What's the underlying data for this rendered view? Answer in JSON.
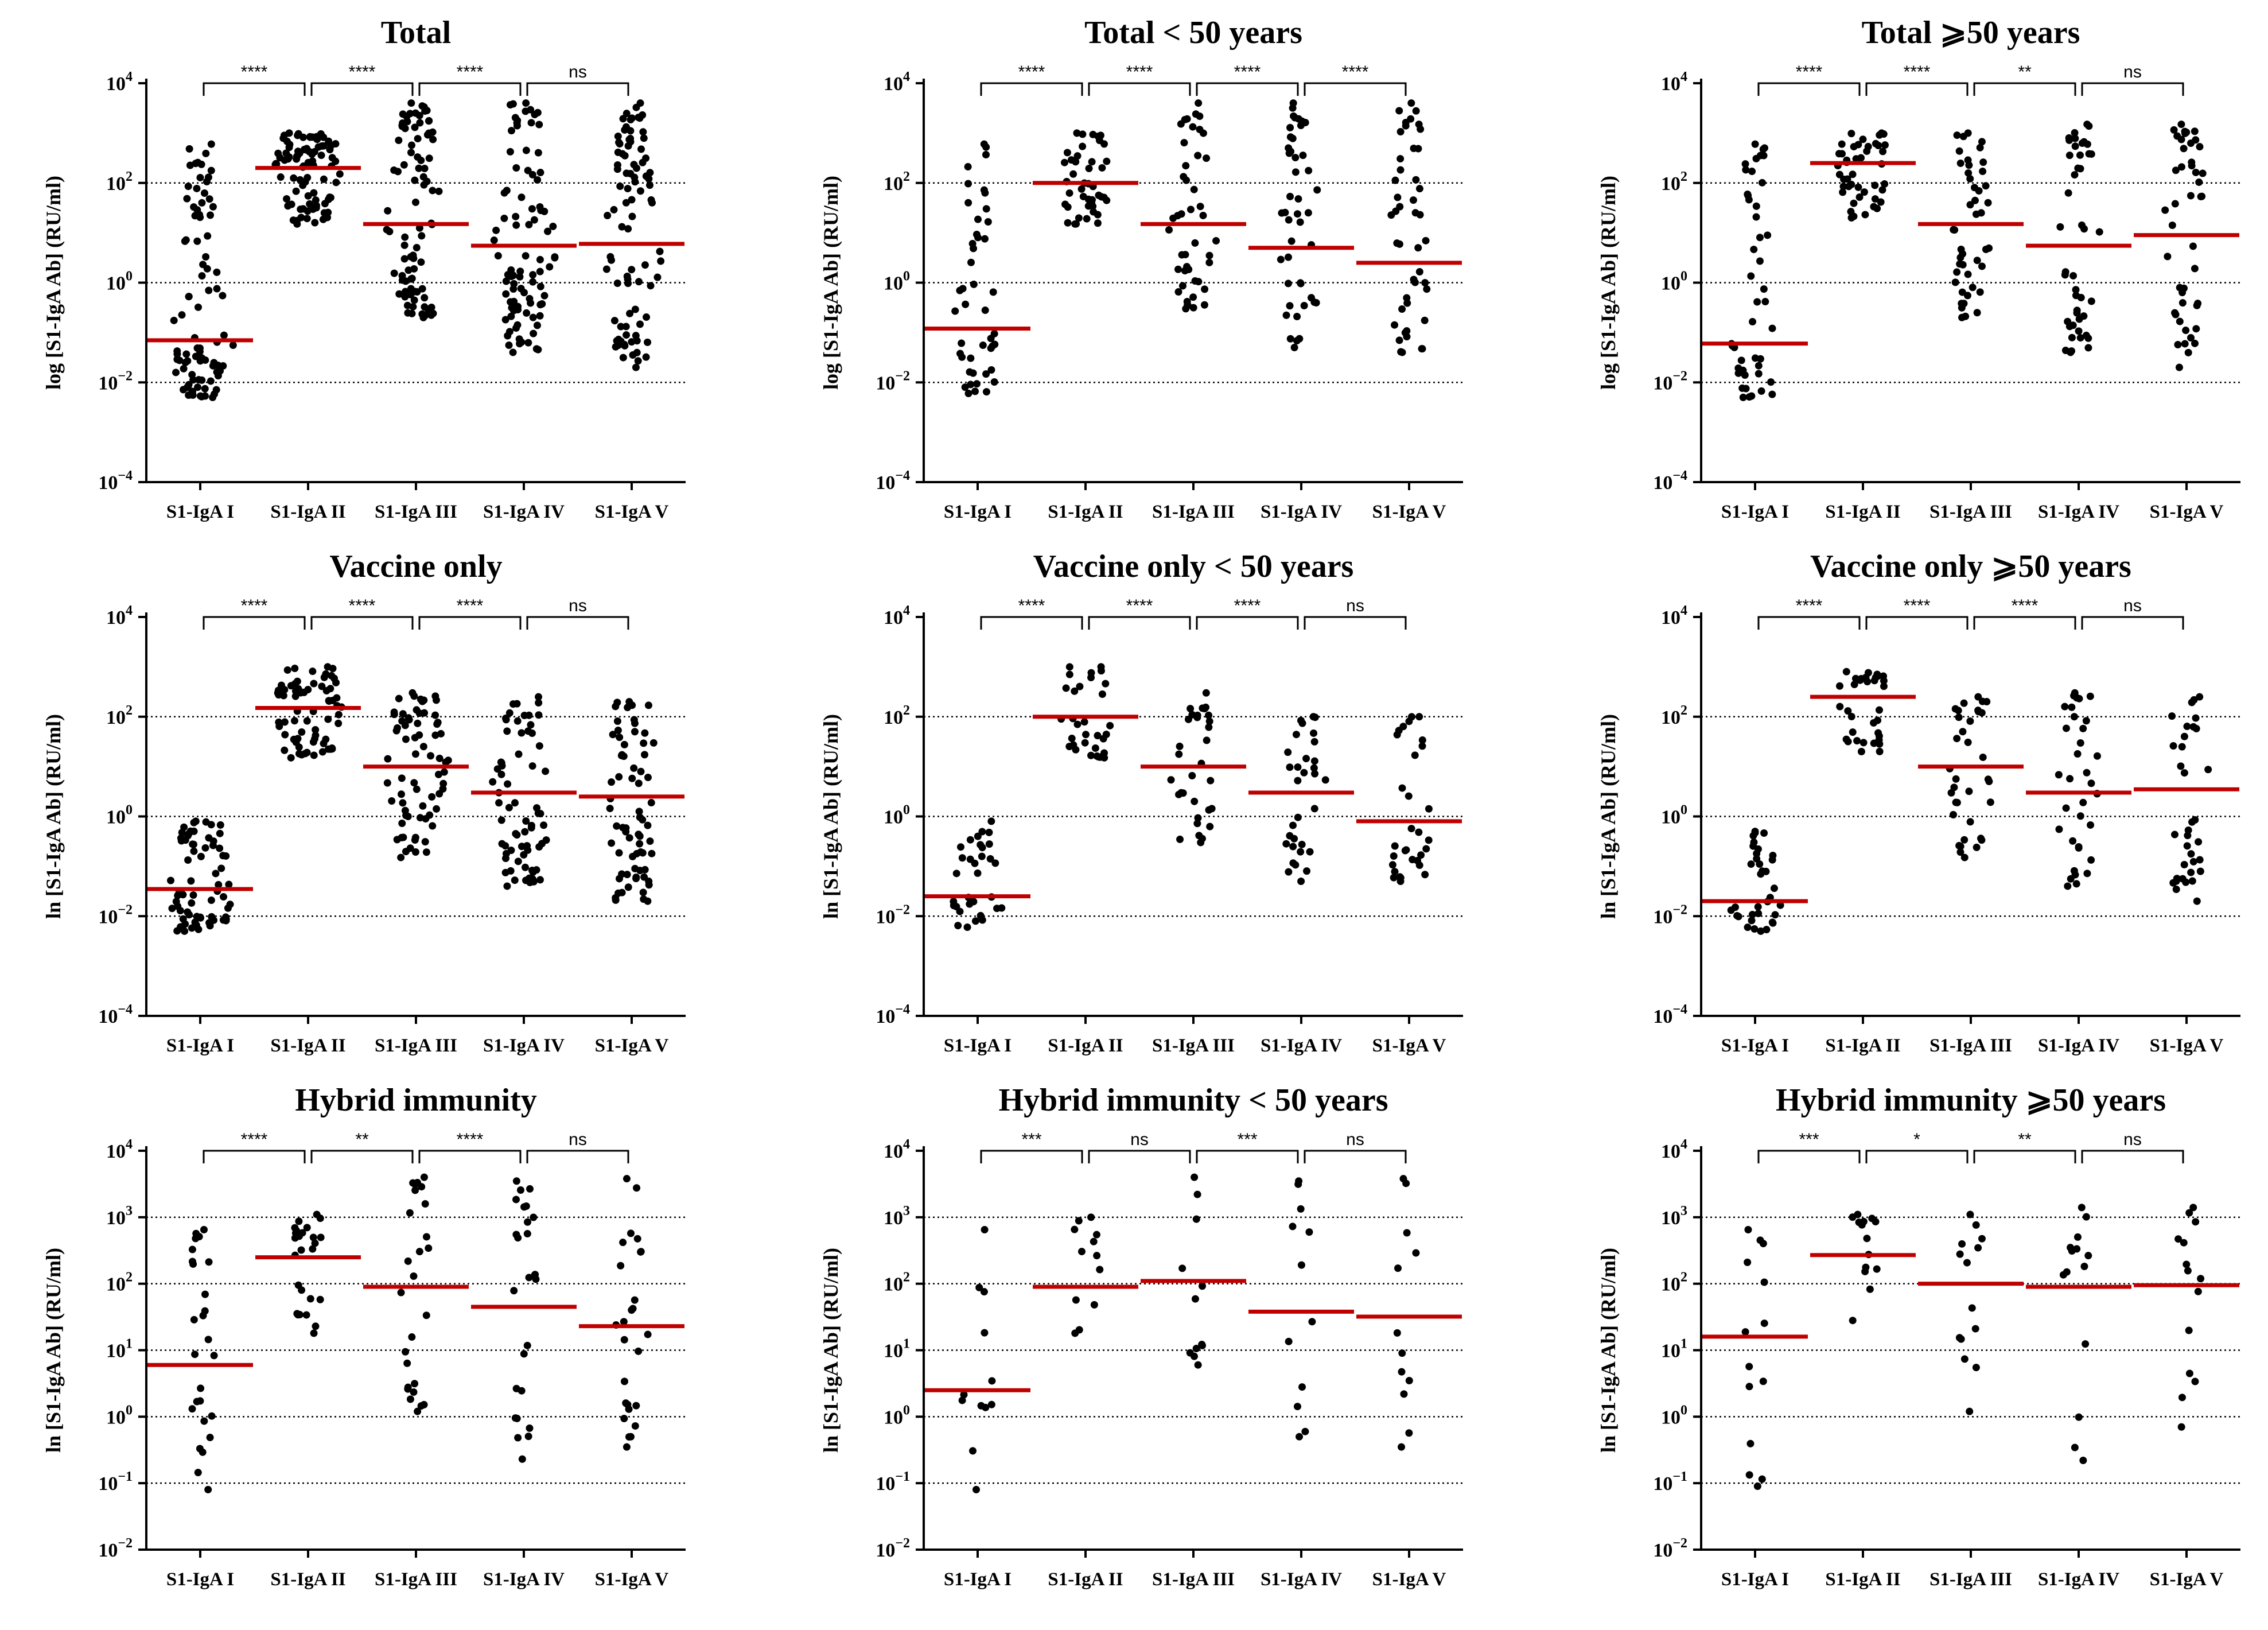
{
  "figure_title": "",
  "colors": {
    "median": "#c00000",
    "point": "#000000",
    "axis": "#000000",
    "grid": "#000000"
  },
  "chart_data": [
    {
      "type": "scatter",
      "title": "Total",
      "ylabel": "log [S1-IgA Ab] (RU/ml)",
      "categories": [
        "S1-IgA I",
        "S1-IgA II",
        "S1-IgA III",
        "S1-IgA IV",
        "S1-IgA V"
      ],
      "yscale": "log",
      "ylim": [
        0.0001,
        10000
      ],
      "yticks": [
        {
          "exp": 4
        },
        {
          "exp": 2
        },
        {
          "exp": 0
        },
        {
          "exp": -2
        },
        {
          "exp": -4
        }
      ],
      "gridlines": [
        100,
        1,
        0.01
      ],
      "medians": [
        0.07,
        200,
        15,
        5.5,
        6
      ],
      "ranges": [
        [
          0.005,
          600
        ],
        [
          15,
          1000
        ],
        [
          0.2,
          4000
        ],
        [
          0.04,
          4000
        ],
        [
          0.02,
          4000
        ]
      ],
      "n_points": [
        90,
        90,
        90,
        90,
        90
      ],
      "comparisons": [
        {
          "pair": [
            0,
            1
          ],
          "label": "****"
        },
        {
          "pair": [
            1,
            2
          ],
          "label": "****"
        },
        {
          "pair": [
            2,
            3
          ],
          "label": "****"
        },
        {
          "pair": [
            3,
            4
          ],
          "label": "ns"
        }
      ]
    },
    {
      "type": "scatter",
      "title": "Total < 50 years",
      "ylabel": "log [S1-IgA Ab] (RU/ml)",
      "categories": [
        "S1-IgA I",
        "S1-IgA II",
        "S1-IgA III",
        "S1-IgA IV",
        "S1-IgA V"
      ],
      "yscale": "log",
      "ylim": [
        0.0001,
        10000
      ],
      "yticks": [
        {
          "exp": 4
        },
        {
          "exp": 2
        },
        {
          "exp": 0
        },
        {
          "exp": -2
        },
        {
          "exp": -4
        }
      ],
      "gridlines": [
        100,
        1,
        0.01
      ],
      "medians": [
        0.12,
        100,
        15,
        5,
        2.5
      ],
      "ranges": [
        [
          0.006,
          600
        ],
        [
          15,
          1000
        ],
        [
          0.3,
          4000
        ],
        [
          0.05,
          4000
        ],
        [
          0.04,
          4000
        ]
      ],
      "n_points": [
        45,
        45,
        45,
        45,
        45
      ],
      "comparisons": [
        {
          "pair": [
            0,
            1
          ],
          "label": "****"
        },
        {
          "pair": [
            1,
            2
          ],
          "label": "****"
        },
        {
          "pair": [
            2,
            3
          ],
          "label": "****"
        },
        {
          "pair": [
            3,
            4
          ],
          "label": "****"
        }
      ]
    },
    {
      "type": "scatter",
      "title": "Total ⩾50 years",
      "ylabel": "log [S1-IgA Ab] (RU/ml)",
      "categories": [
        "S1-IgA I",
        "S1-IgA II",
        "S1-IgA III",
        "S1-IgA IV",
        "S1-IgA V"
      ],
      "yscale": "log",
      "ylim": [
        0.0001,
        10000
      ],
      "yticks": [
        {
          "exp": 4
        },
        {
          "exp": 2
        },
        {
          "exp": 0
        },
        {
          "exp": -2
        },
        {
          "exp": -4
        }
      ],
      "gridlines": [
        100,
        1,
        0.01
      ],
      "medians": [
        0.06,
        250,
        15,
        5.5,
        9
      ],
      "ranges": [
        [
          0.005,
          600
        ],
        [
          20,
          1000
        ],
        [
          0.2,
          1000
        ],
        [
          0.04,
          1500
        ],
        [
          0.02,
          1500
        ]
      ],
      "n_points": [
        45,
        45,
        45,
        45,
        45
      ],
      "comparisons": [
        {
          "pair": [
            0,
            1
          ],
          "label": "****"
        },
        {
          "pair": [
            1,
            2
          ],
          "label": "****"
        },
        {
          "pair": [
            2,
            3
          ],
          "label": "**"
        },
        {
          "pair": [
            3,
            4
          ],
          "label": "ns"
        }
      ]
    },
    {
      "type": "scatter",
      "title": "Vaccine only",
      "ylabel": "ln [S1-IgA Ab] (RU/ml)",
      "categories": [
        "S1-IgA I",
        "S1-IgA II",
        "S1-IgA III",
        "S1-IgA IV",
        "S1-IgA V"
      ],
      "yscale": "log",
      "ylim": [
        0.0001,
        10000
      ],
      "yticks": [
        {
          "exp": 4
        },
        {
          "exp": 2
        },
        {
          "exp": 0
        },
        {
          "exp": -2
        },
        {
          "exp": -4
        }
      ],
      "gridlines": [
        100,
        1,
        0.01
      ],
      "medians": [
        0.035,
        150,
        10,
        3,
        2.5
      ],
      "ranges": [
        [
          0.005,
          0.8
        ],
        [
          15,
          1000
        ],
        [
          0.15,
          300
        ],
        [
          0.04,
          250
        ],
        [
          0.02,
          200
        ]
      ],
      "n_points": [
        70,
        70,
        70,
        70,
        70
      ],
      "comparisons": [
        {
          "pair": [
            0,
            1
          ],
          "label": "****"
        },
        {
          "pair": [
            1,
            2
          ],
          "label": "****"
        },
        {
          "pair": [
            2,
            3
          ],
          "label": "****"
        },
        {
          "pair": [
            3,
            4
          ],
          "label": "ns"
        }
      ]
    },
    {
      "type": "scatter",
      "title": "Vaccine only < 50 years",
      "ylabel": "ln [S1-IgA Ab] (RU/ml)",
      "categories": [
        "S1-IgA I",
        "S1-IgA II",
        "S1-IgA III",
        "S1-IgA IV",
        "S1-IgA V"
      ],
      "yscale": "log",
      "ylim": [
        0.0001,
        10000
      ],
      "yticks": [
        {
          "exp": 4
        },
        {
          "exp": 2
        },
        {
          "exp": 0
        },
        {
          "exp": -2
        },
        {
          "exp": -4
        }
      ],
      "gridlines": [
        100,
        1,
        0.01
      ],
      "medians": [
        0.025,
        100,
        10,
        3,
        0.8
      ],
      "ranges": [
        [
          0.006,
          0.8
        ],
        [
          15,
          1000
        ],
        [
          0.3,
          300
        ],
        [
          0.05,
          100
        ],
        [
          0.05,
          100
        ]
      ],
      "n_points": [
        32,
        32,
        32,
        32,
        32
      ],
      "comparisons": [
        {
          "pair": [
            0,
            1
          ],
          "label": "****"
        },
        {
          "pair": [
            1,
            2
          ],
          "label": "****"
        },
        {
          "pair": [
            2,
            3
          ],
          "label": "****"
        },
        {
          "pair": [
            3,
            4
          ],
          "label": "ns"
        }
      ]
    },
    {
      "type": "scatter",
      "title": "Vaccine only ⩾50 years",
      "ylabel": "ln [S1-IgA Ab] (RU/ml)",
      "categories": [
        "S1-IgA I",
        "S1-IgA II",
        "S1-IgA III",
        "S1-IgA IV",
        "S1-IgA V"
      ],
      "yscale": "log",
      "ylim": [
        0.0001,
        10000
      ],
      "yticks": [
        {
          "exp": 4
        },
        {
          "exp": 2
        },
        {
          "exp": 0
        },
        {
          "exp": -2
        },
        {
          "exp": -4
        }
      ],
      "gridlines": [
        100,
        1,
        0.01
      ],
      "medians": [
        0.02,
        250,
        10,
        3,
        3.5
      ],
      "ranges": [
        [
          0.005,
          0.5
        ],
        [
          20,
          800
        ],
        [
          0.15,
          250
        ],
        [
          0.04,
          300
        ],
        [
          0.02,
          250
        ]
      ],
      "n_points": [
        35,
        35,
        35,
        35,
        35
      ],
      "comparisons": [
        {
          "pair": [
            0,
            1
          ],
          "label": "****"
        },
        {
          "pair": [
            1,
            2
          ],
          "label": "****"
        },
        {
          "pair": [
            2,
            3
          ],
          "label": "****"
        },
        {
          "pair": [
            3,
            4
          ],
          "label": "ns"
        }
      ]
    },
    {
      "type": "scatter",
      "title": "Hybrid immunity",
      "ylabel": "ln [S1-IgA Ab] (RU/ml)",
      "categories": [
        "S1-IgA I",
        "S1-IgA II",
        "S1-IgA III",
        "S1-IgA IV",
        "S1-IgA V"
      ],
      "yscale": "log",
      "ylim": [
        0.01,
        10000
      ],
      "yticks": [
        {
          "exp": 4
        },
        {
          "exp": 3
        },
        {
          "exp": 2
        },
        {
          "exp": 1
        },
        {
          "exp": 0
        },
        {
          "exp": -1
        },
        {
          "exp": -2
        }
      ],
      "gridlines": [
        1000,
        100,
        10,
        1,
        0.1
      ],
      "medians": [
        6,
        250,
        90,
        45,
        23
      ],
      "ranges": [
        [
          0.08,
          650
        ],
        [
          18,
          1100
        ],
        [
          1.2,
          4000
        ],
        [
          0.23,
          3500
        ],
        [
          0.35,
          3800
        ]
      ],
      "n_points": [
        26,
        26,
        26,
        26,
        26
      ],
      "comparisons": [
        {
          "pair": [
            0,
            1
          ],
          "label": "****"
        },
        {
          "pair": [
            1,
            2
          ],
          "label": "**"
        },
        {
          "pair": [
            2,
            3
          ],
          "label": "****"
        },
        {
          "pair": [
            3,
            4
          ],
          "label": "ns"
        }
      ]
    },
    {
      "type": "scatter",
      "title": "Hybrid immunity < 50 years",
      "ylabel": "ln [S1-IgA Ab] (RU/ml)",
      "categories": [
        "S1-IgA I",
        "S1-IgA II",
        "S1-IgA III",
        "S1-IgA IV",
        "S1-IgA V"
      ],
      "yscale": "log",
      "ylim": [
        0.01,
        10000
      ],
      "yticks": [
        {
          "exp": 4
        },
        {
          "exp": 3
        },
        {
          "exp": 2
        },
        {
          "exp": 1
        },
        {
          "exp": 0
        },
        {
          "exp": -1
        },
        {
          "exp": -2
        }
      ],
      "gridlines": [
        1000,
        100,
        10,
        1,
        0.1
      ],
      "medians": [
        2.5,
        90,
        110,
        38,
        32
      ],
      "ranges": [
        [
          0.08,
          650
        ],
        [
          18,
          1000
        ],
        [
          6,
          4000
        ],
        [
          0.5,
          3500
        ],
        [
          0.35,
          3800
        ]
      ],
      "n_points": [
        12,
        12,
        12,
        12,
        12
      ],
      "comparisons": [
        {
          "pair": [
            0,
            1
          ],
          "label": "***"
        },
        {
          "pair": [
            1,
            2
          ],
          "label": "ns"
        },
        {
          "pair": [
            2,
            3
          ],
          "label": "***"
        },
        {
          "pair": [
            3,
            4
          ],
          "label": "ns"
        }
      ]
    },
    {
      "type": "scatter",
      "title": "Hybrid immunity ⩾50 years",
      "ylabel": "ln [S1-IgA Ab] (RU/ml)",
      "categories": [
        "S1-IgA I",
        "S1-IgA II",
        "S1-IgA III",
        "S1-IgA IV",
        "S1-IgA V"
      ],
      "yscale": "log",
      "ylim": [
        0.01,
        10000
      ],
      "yticks": [
        {
          "exp": 4
        },
        {
          "exp": 3
        },
        {
          "exp": 2
        },
        {
          "exp": 1
        },
        {
          "exp": 0
        },
        {
          "exp": -1
        },
        {
          "exp": -2
        }
      ],
      "gridlines": [
        1000,
        100,
        10,
        1,
        0.1
      ],
      "medians": [
        16,
        270,
        100,
        90,
        95
      ],
      "ranges": [
        [
          0.09,
          650
        ],
        [
          28,
          1100
        ],
        [
          1.2,
          1100
        ],
        [
          0.22,
          1400
        ],
        [
          0.7,
          1400
        ]
      ],
      "n_points": [
        14,
        14,
        14,
        14,
        14
      ],
      "comparisons": [
        {
          "pair": [
            0,
            1
          ],
          "label": "***"
        },
        {
          "pair": [
            1,
            2
          ],
          "label": "*"
        },
        {
          "pair": [
            2,
            3
          ],
          "label": "**"
        },
        {
          "pair": [
            3,
            4
          ],
          "label": "ns"
        }
      ]
    }
  ]
}
